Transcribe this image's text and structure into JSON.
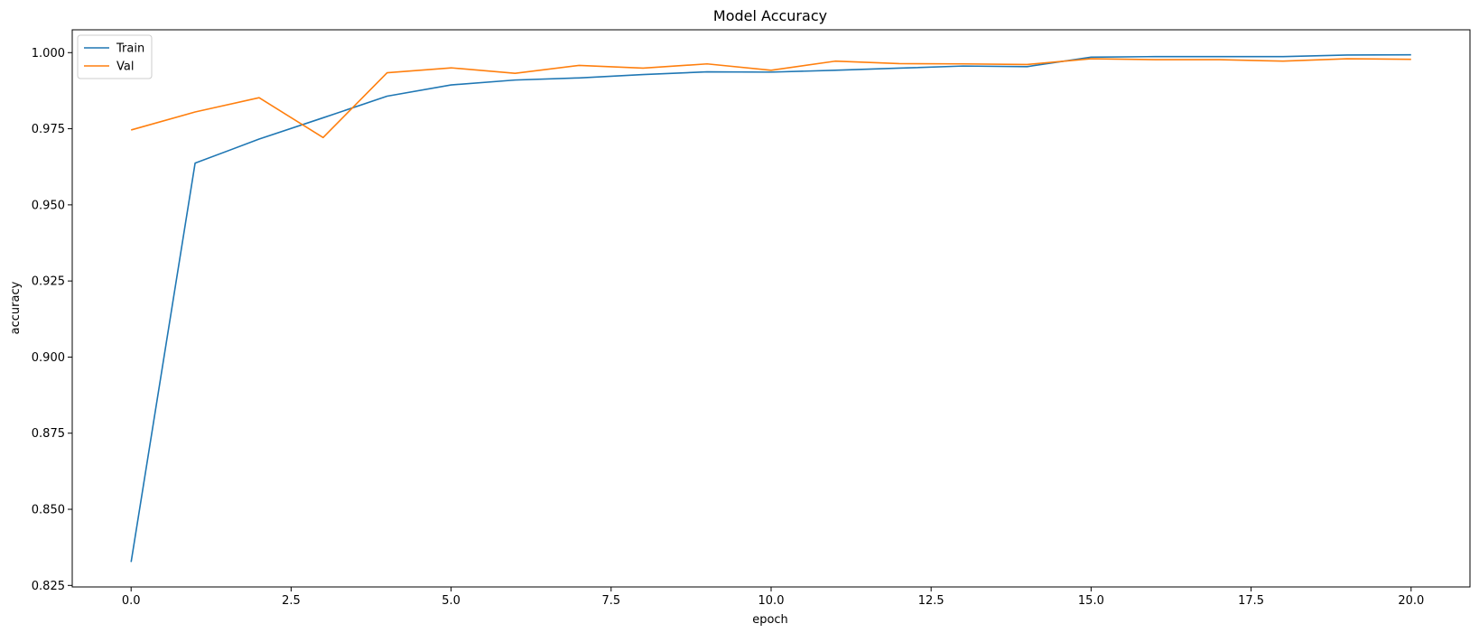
{
  "chart_data": {
    "type": "line",
    "title": "Model Accuracy",
    "xlabel": "epoch",
    "ylabel": "accuracy",
    "xlim": [
      -0.92,
      20.92
    ],
    "ylim": [
      0.8245,
      1.0075
    ],
    "xticks": [
      0.0,
      2.5,
      5.0,
      7.5,
      10.0,
      12.5,
      15.0,
      17.5,
      20.0
    ],
    "xtick_labels": [
      "0.0",
      "2.5",
      "5.0",
      "7.5",
      "10.0",
      "12.5",
      "15.0",
      "17.5",
      "20.0"
    ],
    "yticks": [
      0.825,
      0.85,
      0.875,
      0.9,
      0.925,
      0.95,
      0.975,
      1.0
    ],
    "ytick_labels": [
      "0.825",
      "0.850",
      "0.875",
      "0.900",
      "0.925",
      "0.950",
      "0.975",
      "1.000"
    ],
    "grid": false,
    "legend_position": "top-left",
    "series": [
      {
        "name": "Train",
        "color": "#1f77b4",
        "x": [
          0,
          1,
          2,
          3,
          4,
          5,
          6,
          7,
          8,
          9,
          10,
          11,
          12,
          13,
          14,
          15,
          16,
          17,
          18,
          19,
          20
        ],
        "values": [
          0.8327,
          0.9637,
          0.9716,
          0.9786,
          0.9857,
          0.9894,
          0.991,
          0.9917,
          0.9928,
          0.9937,
          0.9936,
          0.9942,
          0.9949,
          0.9956,
          0.9954,
          0.9985,
          0.9987,
          0.9987,
          0.9987,
          0.9992,
          0.9993
        ]
      },
      {
        "name": "Val",
        "color": "#ff7f0e",
        "x": [
          0,
          1,
          2,
          3,
          4,
          5,
          6,
          7,
          8,
          9,
          10,
          11,
          12,
          13,
          14,
          15,
          16,
          17,
          18,
          19,
          20
        ],
        "values": [
          0.9746,
          0.9805,
          0.9852,
          0.9721,
          0.9934,
          0.995,
          0.9932,
          0.9958,
          0.9949,
          0.9963,
          0.9942,
          0.9972,
          0.9964,
          0.9963,
          0.9961,
          0.998,
          0.9977,
          0.9977,
          0.9972,
          0.998,
          0.9978
        ]
      }
    ]
  }
}
